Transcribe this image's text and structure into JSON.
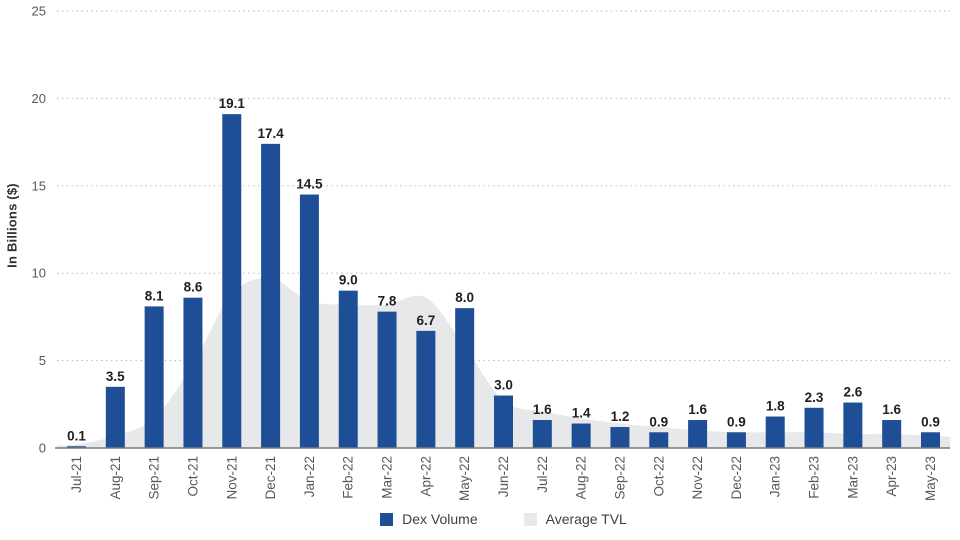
{
  "chart_data": {
    "type": "bar",
    "title": "",
    "xlabel": "",
    "ylabel": "In Billions ($)",
    "ylim": [
      0,
      25
    ],
    "yticks": [
      0,
      5,
      10,
      15,
      20,
      25
    ],
    "grid": "horizontal-dotted",
    "legend_position": "bottom-center",
    "bar_value_labels": true,
    "categories": [
      "Jul-21",
      "Aug-21",
      "Sep-21",
      "Oct-21",
      "Nov-21",
      "Dec-21",
      "Jan-22",
      "Feb-22",
      "Mar-22",
      "Apr-22",
      "May-22",
      "Jun-22",
      "Jul-22",
      "Aug-22",
      "Sep-22",
      "Oct-22",
      "Nov-22",
      "Dec-22",
      "Jan-23",
      "Feb-23",
      "Mar-23",
      "Apr-23",
      "May-23"
    ],
    "series": [
      {
        "name": "Dex Volume",
        "type": "bar",
        "color": "#1e4e96",
        "values": [
          0.1,
          3.5,
          8.1,
          8.6,
          19.1,
          17.4,
          14.5,
          9.0,
          7.8,
          6.7,
          8.0,
          3.0,
          1.6,
          1.4,
          1.2,
          0.9,
          1.6,
          0.9,
          1.8,
          2.3,
          2.6,
          1.6,
          0.9
        ]
      },
      {
        "name": "Average TVL",
        "type": "area",
        "color": "#e7e8e9",
        "values": [
          0.2,
          0.7,
          1.7,
          4.8,
          8.8,
          9.7,
          8.4,
          8.2,
          8.2,
          8.6,
          5.8,
          2.7,
          2.1,
          1.7,
          1.4,
          1.2,
          1.0,
          0.9,
          0.9,
          0.9,
          0.8,
          0.8,
          0.7
        ]
      }
    ],
    "colors": {
      "bar": "#1e4e96",
      "area": "#e7e8e9",
      "gridline": "#b8b8b8",
      "axis_line": "#7a7a7a",
      "tick_text": "#595959",
      "value_label_text": "#1f1f1f",
      "axis_title_text": "#303030",
      "legend_text": "#404040",
      "background": "#ffffff"
    }
  }
}
